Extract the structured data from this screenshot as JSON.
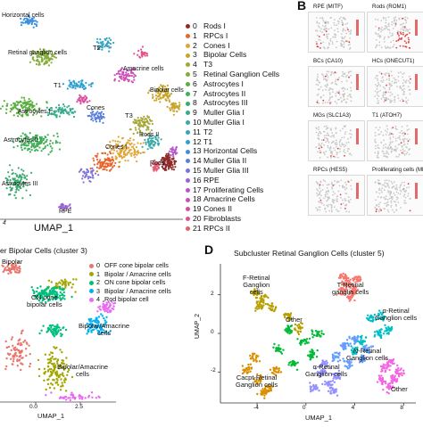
{
  "panel_letters": {
    "b": "B",
    "d": "D"
  },
  "panel_a": {
    "xlabel": "UMAP_1",
    "x_tick_left": "4",
    "clusters": [
      {
        "id": "0",
        "name": "Rods I",
        "color": "#8f2a2a"
      },
      {
        "id": "1",
        "name": "RPCs I",
        "color": "#e8662d"
      },
      {
        "id": "2",
        "name": "Cones I",
        "color": "#e0a63a"
      },
      {
        "id": "3",
        "name": "Bipolar Cells",
        "color": "#c9a52c"
      },
      {
        "id": "4",
        "name": "T3",
        "color": "#a5a73a"
      },
      {
        "id": "5",
        "name": "Retinal Ganglion Cells",
        "color": "#86ad3c"
      },
      {
        "id": "6",
        "name": "Astrocytes I",
        "color": "#5cae43"
      },
      {
        "id": "7",
        "name": "Astrocytes II",
        "color": "#3fae56"
      },
      {
        "id": "8",
        "name": "Astrocytes III",
        "color": "#3aab6f"
      },
      {
        "id": "9",
        "name": "Muller Glia I",
        "color": "#38a98c"
      },
      {
        "id": "10",
        "name": "Muller Glia I",
        "color": "#3aa7a8"
      },
      {
        "id": "11",
        "name": "T2",
        "color": "#34a4c0"
      },
      {
        "id": "12",
        "name": "T1",
        "color": "#2f9fd2"
      },
      {
        "id": "13",
        "name": "Horizontal Cells",
        "color": "#3b8fdc"
      },
      {
        "id": "14",
        "name": "Muller Glia II",
        "color": "#5b7fdd"
      },
      {
        "id": "15",
        "name": "Muller Glia III",
        "color": "#7c72db"
      },
      {
        "id": "16",
        "name": "RPE",
        "color": "#9a63d6"
      },
      {
        "id": "17",
        "name": "Proliferating Cells",
        "color": "#b657cc"
      },
      {
        "id": "18",
        "name": "Amacrine Cells",
        "color": "#cc4fb9"
      },
      {
        "id": "19",
        "name": "Cones II",
        "color": "#da4d9e"
      },
      {
        "id": "20",
        "name": "Fibroblasts",
        "color": "#e0528a"
      },
      {
        "id": "21",
        "name": "RPCs II",
        "color": "#e35e73"
      }
    ],
    "labels": {
      "horizontal": "Horizontal cells",
      "rgc": "Retinal ganglion cells",
      "t2": "T2",
      "amacrine": "Amacrine cells",
      "t1": "T1",
      "bipolar": "Bipolar cells",
      "astro1": "Astrocytes I",
      "cones": "Cones",
      "t3": "T3",
      "astro2": "Astrocytes II",
      "cones1": "Cones I",
      "rods2": "Rods II",
      "rods": "Rods",
      "astro3": "Astrocytes III",
      "rpe": "RPE"
    }
  },
  "panel_b": {
    "features": [
      {
        "title": "RPE (MITF)"
      },
      {
        "title": "Rods (ROM1)"
      },
      {
        "title": "BCs (CA10)"
      },
      {
        "title": "HCs (ONECUT1)"
      },
      {
        "title": "MGs (SLC1A3)"
      },
      {
        "title": "T1 (ATOH7)"
      },
      {
        "title": "RPCs (HES5)"
      },
      {
        "title": "Proliferating cells (MKI67)"
      }
    ]
  },
  "panel_c": {
    "title": "er Bipolar Cells (cluster 3)",
    "xlabel": "UMAP_1",
    "x_ticks": [
      "0.0",
      "2.5"
    ],
    "legend": [
      {
        "id": "0",
        "name": "OFF cone bipolar cells",
        "color": "#e8766d"
      },
      {
        "id": "1",
        "name": "Bipolar / Amacrine cells",
        "color": "#a3a500"
      },
      {
        "id": "2",
        "name": "ON cone bipolar cells",
        "color": "#00bf7d"
      },
      {
        "id": "3",
        "name": "Bipolar / Amacrine cells",
        "color": "#00b0f6"
      },
      {
        "id": "4",
        "name": "Rod bipolar cell",
        "color": "#e76bf3"
      }
    ],
    "labels": {
      "bipolar_top": "Bipolar",
      "on_cone": "ON cone\nbipolar cells",
      "bip_am_mid": "Bipolar/Amacrine\ncells",
      "bip_am_low": "Bipolar/Amacrine\ncells"
    }
  },
  "chart_data": {
    "type": "scatter",
    "title": "Subcluster Retinal Ganglion Cells (cluster 5)",
    "xlabel": "UMAP_1",
    "ylabel": "UMAP_2",
    "x_ticks": [
      "-4",
      "0",
      "4",
      "8"
    ],
    "y_ticks": [
      "2",
      "0",
      "-2"
    ],
    "xlim": [
      -7,
      9
    ],
    "ylim": [
      -3.6,
      3.6
    ],
    "series": [
      {
        "color": "#f8766d",
        "points": [
          [
            3.4,
            2.6
          ],
          [
            3.1,
            2.9
          ],
          [
            3.9,
            2.3
          ],
          [
            4.2,
            2.8
          ],
          [
            3.0,
            2.2
          ],
          [
            3.7,
            1.9
          ]
        ]
      },
      {
        "color": "#b79f00",
        "points": [
          [
            -4.2,
            2.1
          ],
          [
            -3.5,
            1.8
          ],
          [
            -2.8,
            1.4
          ],
          [
            -1.5,
            0.9
          ],
          [
            -0.6,
            0.3
          ],
          [
            -3.8,
            1.4
          ]
        ]
      },
      {
        "color": "#00ba38",
        "points": [
          [
            -1.3,
            0.2
          ],
          [
            -0.2,
            -0.4
          ],
          [
            1.0,
            0.0
          ],
          [
            -2.2,
            -0.8
          ],
          [
            0.5,
            -1.1
          ],
          [
            -1.0,
            -1.6
          ]
        ]
      },
      {
        "color": "#00bfc4",
        "points": [
          [
            5.4,
            0.8
          ],
          [
            6.2,
            0.9
          ],
          [
            6.8,
            0.2
          ],
          [
            5.9,
            0.0
          ],
          [
            4.6,
            -0.4
          ],
          [
            3.9,
            -0.9
          ]
        ]
      },
      {
        "color": "#619cff",
        "points": [
          [
            4.0,
            -0.3
          ],
          [
            3.2,
            -0.6
          ],
          [
            4.6,
            -1.3
          ],
          [
            2.5,
            -1.2
          ],
          [
            3.4,
            -1.6
          ],
          [
            5.0,
            -0.8
          ]
        ]
      },
      {
        "color": "#f564e3",
        "points": [
          [
            6.5,
            -1.8
          ],
          [
            7.2,
            -2.4
          ],
          [
            6.8,
            -2.8
          ],
          [
            7.6,
            -2.0
          ],
          [
            6.2,
            -2.4
          ],
          [
            7.0,
            -1.5
          ]
        ]
      },
      {
        "color": "#d89000",
        "points": [
          [
            -4.8,
            -1.8
          ],
          [
            -3.9,
            -2.4
          ],
          [
            -3.1,
            -2.9
          ],
          [
            -4.2,
            -1.2
          ],
          [
            -2.5,
            -1.9
          ],
          [
            -3.5,
            -3.1
          ]
        ]
      },
      {
        "color": "#9590ff",
        "points": [
          [
            1.2,
            -2.0
          ],
          [
            1.9,
            -2.6
          ],
          [
            0.7,
            -2.8
          ],
          [
            2.5,
            -2.2
          ],
          [
            1.6,
            -1.6
          ],
          [
            2.2,
            -3.0
          ]
        ]
      }
    ],
    "labels": {
      "f_rgc": "F-Retinal\nGanglion\ncells",
      "t_rgc": "T-Retinal\nganglia cells",
      "other_top": "Other",
      "alpha_rgc": "α-Retinal\nGanglion cells",
      "n_rgc": "N-Retinal\nGanglion cells",
      "alpha_rgc2": "α-Retinal\nGanglion cells",
      "cacpt": "Cacpt-Retinal\nGanglion cells",
      "other_bottom": "Other"
    }
  }
}
